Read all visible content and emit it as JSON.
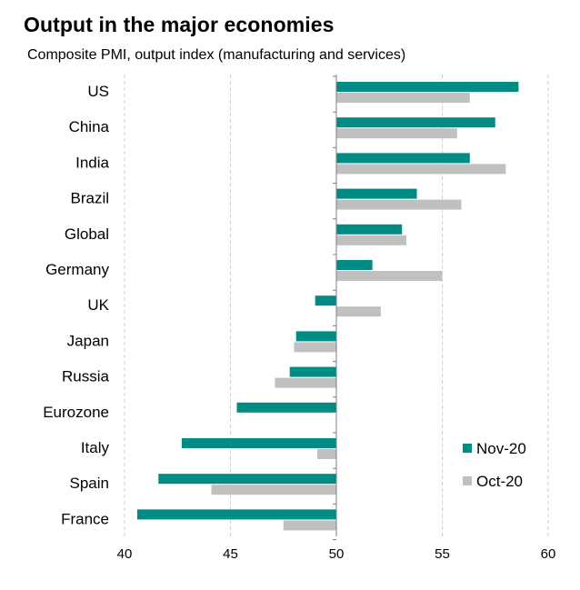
{
  "chart_data": {
    "type": "bar",
    "orientation": "horizontal",
    "title": "Output in the major economies",
    "subtitle": "Composite PMI, output index (manufacturing and services)",
    "categories": [
      "US",
      "China",
      "India",
      "Brazil",
      "Global",
      "Germany",
      "UK",
      "Japan",
      "Russia",
      "Eurozone",
      "Italy",
      "Spain",
      "France"
    ],
    "series": [
      {
        "name": "Nov-20",
        "color": "#008b84",
        "values": [
          58.6,
          57.5,
          56.3,
          53.8,
          53.1,
          51.7,
          49.0,
          48.1,
          47.8,
          45.3,
          42.7,
          41.6,
          40.6
        ]
      },
      {
        "name": "Oct-20",
        "color": "#c0c0c0",
        "values": [
          56.3,
          55.7,
          58.0,
          55.9,
          53.3,
          55.0,
          52.1,
          48.0,
          47.1,
          null,
          49.1,
          44.1,
          47.5
        ]
      }
    ],
    "baseline": 50,
    "xlim": [
      40,
      60
    ],
    "xticks": [
      40,
      45,
      50,
      55,
      60
    ],
    "grid": "vertical-dashed",
    "legend_position": "bottom-right"
  }
}
